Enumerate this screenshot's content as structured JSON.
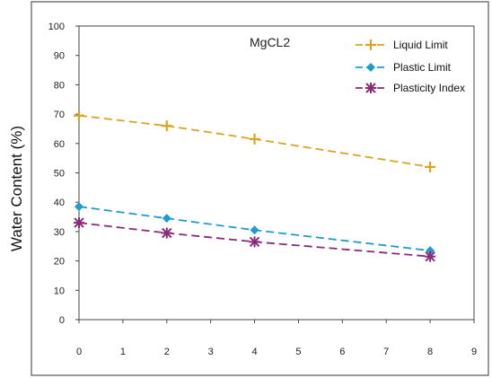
{
  "chart_data": {
    "type": "line",
    "title": "MgCL2",
    "xlabel": "",
    "ylabel": "Water Content (%)",
    "xlim": [
      0,
      9
    ],
    "ylim": [
      0,
      100
    ],
    "x_ticks": [
      "0",
      "1",
      "2",
      "3",
      "4",
      "5",
      "6",
      "7",
      "8",
      "9"
    ],
    "y_ticks": [
      "0",
      "10",
      "20",
      "30",
      "40",
      "50",
      "60",
      "70",
      "80",
      "90",
      "100"
    ],
    "grid": false,
    "legend_position": "top-right",
    "series": [
      {
        "name": "Liquid Limit",
        "color": "#d9a521",
        "marker": "plus",
        "x": [
          0,
          2,
          4,
          8
        ],
        "values": [
          69.5,
          66,
          61.5,
          52
        ]
      },
      {
        "name": "Plastic Limit",
        "color": "#1f9ccd",
        "marker": "diamond",
        "x": [
          0,
          2,
          4,
          8
        ],
        "values": [
          38.5,
          34.5,
          30.5,
          23.5
        ]
      },
      {
        "name": "Plasticity Index",
        "color": "#8a2a79",
        "marker": "star",
        "x": [
          0,
          2,
          4,
          8
        ],
        "values": [
          33,
          29.5,
          26.5,
          21.5
        ]
      }
    ]
  }
}
